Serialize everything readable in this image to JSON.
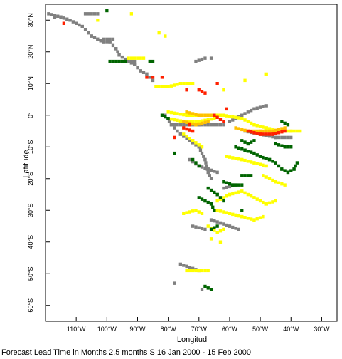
{
  "map": {
    "xlabel": "Longitud",
    "ylabel": "Latitude",
    "lon_range": [
      -120,
      -25
    ],
    "lat_range": [
      -65,
      35
    ],
    "lon_ticks": [
      {
        "value": -110,
        "label": "110°W"
      },
      {
        "value": -100,
        "label": "100°W"
      },
      {
        "value": -90,
        "label": "90°W"
      },
      {
        "value": -80,
        "label": "80°W"
      },
      {
        "value": -70,
        "label": "70°W"
      },
      {
        "value": -60,
        "label": "60°W"
      },
      {
        "value": -50,
        "label": "50°W"
      },
      {
        "value": -40,
        "label": "40°W"
      },
      {
        "value": -30,
        "label": "30°W"
      }
    ],
    "lat_ticks": [
      {
        "value": 30,
        "label": "30°N"
      },
      {
        "value": 20,
        "label": "20°N"
      },
      {
        "value": 10,
        "label": "10°N"
      },
      {
        "value": 0,
        "label": "0°"
      },
      {
        "value": -10,
        "label": "10°S"
      },
      {
        "value": -20,
        "label": "20°S"
      },
      {
        "value": -30,
        "label": "30°S"
      },
      {
        "value": -40,
        "label": "40°S"
      },
      {
        "value": -50,
        "label": "50°S"
      },
      {
        "value": -60,
        "label": "60°S"
      }
    ],
    "category_colors": {
      "gray": "#808080",
      "yellow": "#ffff00",
      "orange": "#ffc000",
      "red": "#ff2000",
      "green": "#006400"
    },
    "cell_size_deg": 1,
    "segments": [
      {
        "category": "gray",
        "points": [
          [
            -119,
            32
          ],
          [
            -115,
            31
          ],
          [
            -112,
            30
          ],
          [
            -110,
            29
          ],
          [
            -108,
            28
          ],
          [
            -106,
            26
          ],
          [
            -105,
            25
          ],
          [
            -103,
            24
          ],
          [
            -101,
            23
          ],
          [
            -99,
            23
          ],
          [
            -97,
            21
          ],
          [
            -96,
            19
          ],
          [
            -93,
            17
          ],
          [
            -91,
            16
          ],
          [
            -89,
            14
          ],
          [
            -87,
            13
          ],
          [
            -85,
            11
          ]
        ]
      },
      {
        "category": "gray",
        "points": [
          [
            -107,
            32
          ],
          [
            -103,
            32
          ]
        ]
      },
      {
        "category": "gray",
        "points": [
          [
            -101,
            24
          ],
          [
            -98,
            24
          ]
        ]
      },
      {
        "category": "gray",
        "points": [
          [
            -95,
            17
          ],
          [
            -91,
            17
          ]
        ]
      },
      {
        "category": "green",
        "points": [
          [
            -99,
            17
          ],
          [
            -94,
            17
          ]
        ]
      },
      {
        "category": "green",
        "points": [
          [
            -86,
            17
          ],
          [
            -85,
            17
          ]
        ]
      },
      {
        "category": "yellow",
        "points": [
          [
            -93,
            18
          ],
          [
            -89,
            18
          ]
        ]
      },
      {
        "category": "gray",
        "points": [
          [
            -71,
            17
          ],
          [
            -68,
            18
          ]
        ]
      },
      {
        "category": "gray",
        "points": [
          [
            -81,
            0
          ],
          [
            -79,
            -3
          ],
          [
            -76,
            -6
          ],
          [
            -73,
            -8
          ],
          [
            -70,
            -10
          ],
          [
            -68,
            -14
          ],
          [
            -67,
            -18
          ],
          [
            -66,
            -20
          ]
        ]
      },
      {
        "category": "gray",
        "points": [
          [
            -78,
            -3
          ],
          [
            -70,
            -3
          ],
          [
            -62,
            -3
          ]
        ]
      },
      {
        "category": "gray",
        "points": [
          [
            -60,
            -2
          ],
          [
            -56,
            0
          ],
          [
            -52,
            2
          ],
          [
            -48,
            3
          ]
        ]
      },
      {
        "category": "gray",
        "points": [
          [
            -55,
            -5
          ],
          [
            -50,
            -6
          ],
          [
            -45,
            -7
          ],
          [
            -40,
            -7
          ]
        ]
      },
      {
        "category": "gray",
        "points": [
          [
            -73,
            -14
          ],
          [
            -70,
            -16
          ],
          [
            -67,
            -17
          ],
          [
            -64,
            -18
          ]
        ]
      },
      {
        "category": "gray",
        "points": [
          [
            -66,
            -33
          ],
          [
            -63,
            -34
          ],
          [
            -60,
            -35
          ],
          [
            -57,
            -36
          ]
        ]
      },
      {
        "category": "gray",
        "points": [
          [
            -72,
            -35
          ],
          [
            -68,
            -36
          ]
        ]
      },
      {
        "category": "gray",
        "points": [
          [
            -62,
            -23
          ],
          [
            -58,
            -22
          ]
        ]
      },
      {
        "category": "gray",
        "points": [
          [
            -76,
            -47
          ],
          [
            -73,
            -48
          ],
          [
            -70,
            -49
          ]
        ]
      },
      {
        "category": "yellow",
        "points": [
          [
            -80,
            1
          ],
          [
            -74,
            0
          ],
          [
            -68,
            0
          ],
          [
            -62,
            0
          ],
          [
            -56,
            -1
          ],
          [
            -52,
            -3
          ],
          [
            -48,
            -4
          ],
          [
            -44,
            -5
          ],
          [
            -40,
            -5
          ],
          [
            -37,
            -5
          ]
        ]
      },
      {
        "category": "yellow",
        "points": [
          [
            -80,
            -1
          ],
          [
            -75,
            -2
          ],
          [
            -70,
            -2
          ],
          [
            -65,
            -1
          ]
        ]
      },
      {
        "category": "yellow",
        "points": [
          [
            -84,
            9
          ],
          [
            -80,
            9
          ],
          [
            -76,
            10
          ],
          [
            -72,
            10
          ]
        ]
      },
      {
        "category": "yellow",
        "points": [
          [
            -64,
            -27
          ],
          [
            -60,
            -25
          ],
          [
            -56,
            -24
          ],
          [
            -52,
            -26
          ],
          [
            -48,
            -28
          ],
          [
            -45,
            -27
          ]
        ]
      },
      {
        "category": "yellow",
        "points": [
          [
            -64,
            -30
          ],
          [
            -60,
            -31
          ],
          [
            -56,
            -32
          ],
          [
            -52,
            -33
          ],
          [
            -49,
            -32
          ]
        ]
      },
      {
        "category": "yellow",
        "points": [
          [
            -61,
            -13
          ],
          [
            -56,
            -14
          ],
          [
            -52,
            -15
          ],
          [
            -48,
            -16
          ]
        ]
      },
      {
        "category": "yellow",
        "points": [
          [
            -49,
            -19
          ],
          [
            -45,
            -21
          ],
          [
            -42,
            -22
          ]
        ]
      },
      {
        "category": "yellow",
        "points": [
          [
            -74,
            -49
          ],
          [
            -70,
            -49
          ],
          [
            -67,
            -49
          ]
        ]
      },
      {
        "category": "yellow",
        "points": [
          [
            -75,
            -31
          ],
          [
            -71,
            -30
          ],
          [
            -69,
            -31
          ]
        ]
      },
      {
        "category": "yellow",
        "points": [
          [
            -67,
            -35
          ],
          [
            -64,
            -37
          ],
          [
            -62,
            -36
          ]
        ]
      },
      {
        "category": "yellow",
        "points": [
          [
            -75,
            -6
          ],
          [
            -72,
            -8
          ],
          [
            -69,
            -10
          ]
        ]
      },
      {
        "category": "orange",
        "points": [
          [
            -74,
            1
          ],
          [
            -70,
            0
          ],
          [
            -66,
            0
          ]
        ]
      },
      {
        "category": "orange",
        "points": [
          [
            -58,
            -4
          ],
          [
            -54,
            -5
          ],
          [
            -50,
            -5
          ],
          [
            -46,
            -5
          ],
          [
            -42,
            -4
          ]
        ]
      },
      {
        "category": "orange",
        "points": [
          [
            -75,
            -2
          ],
          [
            -71,
            -3
          ],
          [
            -67,
            -2
          ]
        ]
      },
      {
        "category": "red",
        "points": [
          [
            -54,
            -5
          ],
          [
            -50,
            -6
          ],
          [
            -46,
            -6
          ],
          [
            -42,
            -5
          ]
        ]
      },
      {
        "category": "red",
        "points": [
          [
            -65,
            0
          ],
          [
            -62,
            -2
          ]
        ]
      },
      {
        "category": "red",
        "points": [
          [
            -75,
            -4
          ],
          [
            -72,
            -5
          ]
        ]
      },
      {
        "category": "red",
        "points": [
          [
            -70,
            8
          ],
          [
            -68,
            7
          ]
        ]
      },
      {
        "category": "green",
        "points": [
          [
            -82,
            0
          ],
          [
            -80,
            -1
          ]
        ]
      },
      {
        "category": "green",
        "points": [
          [
            -58,
            -10
          ],
          [
            -55,
            -11
          ],
          [
            -52,
            -12
          ],
          [
            -50,
            -13
          ],
          [
            -47,
            -14
          ],
          [
            -45,
            -15
          ],
          [
            -43,
            -17
          ],
          [
            -41,
            -18
          ],
          [
            -39,
            -17
          ],
          [
            -38,
            -15
          ]
        ]
      },
      {
        "category": "green",
        "points": [
          [
            -56,
            -19
          ],
          [
            -53,
            -19
          ]
        ]
      },
      {
        "category": "green",
        "points": [
          [
            -62,
            -21
          ],
          [
            -59,
            -22
          ],
          [
            -56,
            -22
          ]
        ]
      },
      {
        "category": "green",
        "points": [
          [
            -67,
            -23
          ],
          [
            -64,
            -25
          ],
          [
            -62,
            -27
          ]
        ]
      },
      {
        "category": "green",
        "points": [
          [
            -70,
            -26
          ],
          [
            -68,
            -27
          ],
          [
            -66,
            -28
          ],
          [
            -65,
            -30
          ]
        ]
      },
      {
        "category": "green",
        "points": [
          [
            -56,
            -8
          ],
          [
            -54,
            -9
          ],
          [
            -52,
            -8
          ]
        ]
      },
      {
        "category": "green",
        "points": [
          [
            -45,
            -9
          ],
          [
            -42,
            -10
          ],
          [
            -40,
            -10
          ]
        ]
      },
      {
        "category": "green",
        "points": [
          [
            -43,
            -2
          ],
          [
            -41,
            -3
          ]
        ]
      },
      {
        "category": "green",
        "points": [
          [
            -72,
            -14
          ],
          [
            -70,
            -16
          ]
        ]
      },
      {
        "category": "green",
        "points": [
          [
            -68,
            -54
          ],
          [
            -66,
            -55
          ]
        ]
      },
      {
        "category": "green",
        "points": [
          [
            -66,
            -36
          ],
          [
            -64,
            -35
          ]
        ]
      }
    ],
    "points": [
      {
        "category": "red",
        "lon": -114,
        "lat": 29
      },
      {
        "category": "red",
        "lon": -87,
        "lat": 12
      },
      {
        "category": "red",
        "lon": -85,
        "lat": 12
      },
      {
        "category": "red",
        "lon": -82,
        "lat": 12
      },
      {
        "category": "red",
        "lon": -74,
        "lat": 8
      },
      {
        "category": "red",
        "lon": -64,
        "lat": 10
      },
      {
        "category": "red",
        "lon": -61,
        "lat": 2
      },
      {
        "category": "red",
        "lon": -78,
        "lat": -7
      },
      {
        "category": "red",
        "lon": -73,
        "lat": -3
      },
      {
        "category": "yellow",
        "lon": -83,
        "lat": 26
      },
      {
        "category": "yellow",
        "lon": -81,
        "lat": 25
      },
      {
        "category": "yellow",
        "lon": -88,
        "lat": 18
      },
      {
        "category": "yellow",
        "lon": -103,
        "lat": 30
      },
      {
        "category": "yellow",
        "lon": -92,
        "lat": 32
      },
      {
        "category": "yellow",
        "lon": -55,
        "lat": 11
      },
      {
        "category": "yellow",
        "lon": -48,
        "lat": 13
      },
      {
        "category": "yellow",
        "lon": -62,
        "lat": 8
      },
      {
        "category": "yellow",
        "lon": -66,
        "lat": -39
      },
      {
        "category": "yellow",
        "lon": -63,
        "lat": -40
      },
      {
        "category": "green",
        "lon": -100,
        "lat": 33
      },
      {
        "category": "green",
        "lon": -78,
        "lat": -12
      },
      {
        "category": "green",
        "lon": -56,
        "lat": -30
      },
      {
        "category": "gray",
        "lon": -117,
        "lat": 31
      },
      {
        "category": "gray",
        "lon": -66,
        "lat": 18
      },
      {
        "category": "gray",
        "lon": -69,
        "lat": -55
      },
      {
        "category": "gray",
        "lon": -78,
        "lat": -53
      }
    ]
  },
  "caption": "Forecast Lead Time in Months 2.5 months S 16 Jan 2000 - 15 Feb 2000"
}
